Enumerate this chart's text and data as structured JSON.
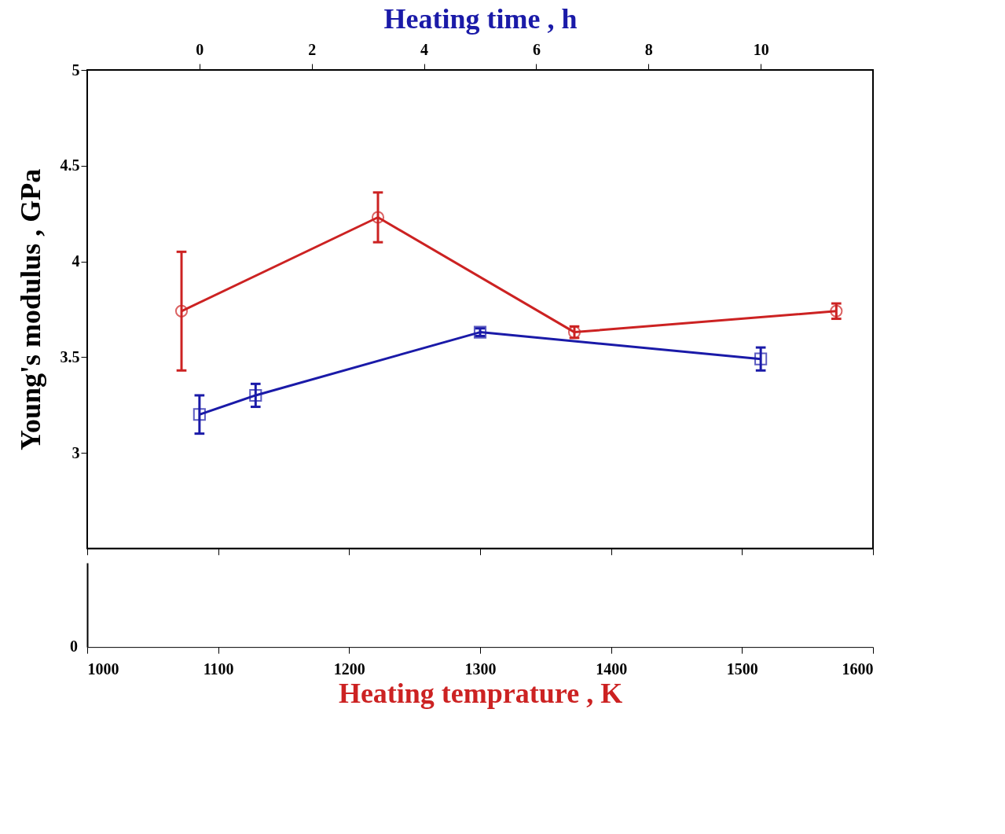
{
  "chart_data": {
    "type": "line",
    "ylabel": "Young's modulus , GPa",
    "xlabel": "Heating temprature , K",
    "x2label": "Heating time , h",
    "xlim": [
      1000,
      1600
    ],
    "xticks": [
      1000,
      1100,
      1200,
      1300,
      1400,
      1500,
      1600
    ],
    "x2lim": [
      -2,
      12
    ],
    "x2ticks": [
      0,
      2,
      4,
      6,
      8,
      10
    ],
    "ylim": [
      2.5,
      5
    ],
    "yticks": [
      3,
      3.5,
      4,
      4.5,
      5
    ],
    "annotations": [
      "0"
    ],
    "series": [
      {
        "color": "#cc2222",
        "marker": "circle",
        "x": [
          1072,
          1222,
          1372,
          1572
        ],
        "values": [
          3.74,
          4.23,
          3.63,
          3.74
        ],
        "errors": [
          0.31,
          0.13,
          0.03,
          0.04
        ]
      },
      {
        "color": "#1a1aa8",
        "marker": "square",
        "axis": "x2",
        "x": [
          0,
          1,
          5,
          10
        ],
        "values": [
          3.2,
          3.3,
          3.63,
          3.49
        ],
        "errors": [
          0.1,
          0.06,
          0.02,
          0.06
        ]
      }
    ]
  }
}
